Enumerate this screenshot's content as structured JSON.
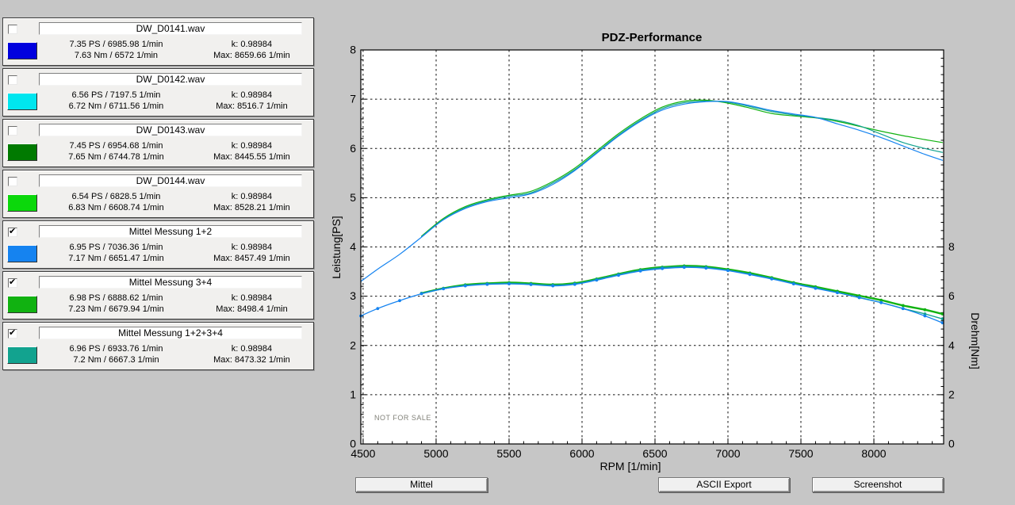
{
  "window": {
    "background": "#C6C6C6"
  },
  "panels": [
    {
      "name": "DW_D0141.wav",
      "checked": false,
      "color": "#0000DE",
      "ps_line": "7.35 PS / 6985.98 1/min",
      "k_line": "k: 0.98984",
      "nm_line": "7.63 Nm / 6572 1/min",
      "max_line": "Max: 8659.66 1/min"
    },
    {
      "name": "DW_D0142.wav",
      "checked": false,
      "color": "#00E6EF",
      "ps_line": "6.56 PS / 7197.5 1/min",
      "k_line": "k: 0.98984",
      "nm_line": "6.72 Nm / 6711.56 1/min",
      "max_line": "Max: 8516.7 1/min"
    },
    {
      "name": "DW_D0143.wav",
      "checked": false,
      "color": "#017A01",
      "ps_line": "7.45 PS / 6954.68 1/min",
      "k_line": "k: 0.98984",
      "nm_line": "7.65 Nm / 6744.78 1/min",
      "max_line": "Max: 8445.55 1/min"
    },
    {
      "name": "DW_D0144.wav",
      "checked": false,
      "color": "#0BD80B",
      "ps_line": "6.54 PS / 6828.5 1/min",
      "k_line": "k: 0.98984",
      "nm_line": "6.83 Nm / 6608.74 1/min",
      "max_line": "Max: 8528.21 1/min"
    },
    {
      "name": "Mittel Messung 1+2",
      "checked": true,
      "color": "#1583F0",
      "ps_line": "6.95 PS / 7036.36 1/min",
      "k_line": "k: 0.98984",
      "nm_line": "7.17 Nm / 6651.47 1/min",
      "max_line": "Max: 8457.49 1/min"
    },
    {
      "name": "Mittel Messung 3+4",
      "checked": true,
      "color": "#11B211",
      "ps_line": "6.98 PS / 6888.62 1/min",
      "k_line": "k: 0.98984",
      "nm_line": "7.23 Nm / 6679.94 1/min",
      "max_line": "Max: 8498.4 1/min"
    },
    {
      "name": "Mittel Messung 1+2+3+4",
      "checked": true,
      "color": "#12A38F",
      "ps_line": "6.96 PS / 6933.76 1/min",
      "k_line": "k: 0.98984",
      "nm_line": "7.2 Nm / 6667.3 1/min",
      "max_line": "Max: 8473.32 1/min"
    }
  ],
  "chart_data": {
    "type": "line",
    "title": "PDZ-Performance",
    "xlabel": "RPM [1/min]",
    "ylabel_left": "Leistung[PS]",
    "ylabel_right": "Drehm[Nm]",
    "watermark": "NOT FOR SALE",
    "grid": "dashed",
    "x_range": [
      4484,
      8478
    ],
    "x_ticks": [
      4500,
      5000,
      5500,
      6000,
      6500,
      7000,
      7500,
      8000
    ],
    "x_minor_step": 100,
    "y_left_range": [
      0,
      8
    ],
    "y_left_ticks": [
      0,
      1,
      2,
      3,
      4,
      5,
      6,
      7,
      8
    ],
    "y_left_minor_step": 0.2,
    "y_right_range": [
      0,
      16
    ],
    "y_right_ticks": [
      0,
      2,
      4,
      6,
      8
    ],
    "y_right_minor_step": 0.3333,
    "series": [
      {
        "name": "Mittel Messung 3+4 - Leistung",
        "axis": "left",
        "color": "#11B211",
        "width": 1.2,
        "markers": false,
        "x": [
          4900,
          5050,
          5200,
          5350,
          5500,
          5650,
          5800,
          5950,
          6100,
          6250,
          6400,
          6550,
          6700,
          6850,
          7000,
          7150,
          7300,
          7450,
          7600,
          7750,
          7900,
          8050,
          8200,
          8350,
          8470
        ],
        "y": [
          4.22,
          4.58,
          4.82,
          4.96,
          5.05,
          5.13,
          5.33,
          5.6,
          5.95,
          6.3,
          6.6,
          6.84,
          6.96,
          6.98,
          6.92,
          6.82,
          6.71,
          6.66,
          6.62,
          6.55,
          6.45,
          6.35,
          6.26,
          6.18,
          6.12
        ]
      },
      {
        "name": "Mittel Messung 1+2+3+4 - Leistung",
        "axis": "left",
        "color": "#12A38F",
        "width": 1.2,
        "markers": false,
        "x": [
          4900,
          5050,
          5200,
          5350,
          5500,
          5650,
          5800,
          5950,
          6100,
          6250,
          6400,
          6550,
          6700,
          6850,
          7000,
          7150,
          7300,
          7450,
          7600,
          7750,
          7900,
          8050,
          8200,
          8350,
          8470
        ],
        "y": [
          4.21,
          4.56,
          4.8,
          4.94,
          5.03,
          5.1,
          5.3,
          5.57,
          5.92,
          6.27,
          6.57,
          6.81,
          6.93,
          6.96,
          6.94,
          6.85,
          6.75,
          6.68,
          6.63,
          6.57,
          6.46,
          6.29,
          6.12,
          6.0,
          5.92
        ]
      },
      {
        "name": "Mittel Messung 1+2 - Leistung",
        "axis": "left",
        "color": "#1583F0",
        "width": 1.2,
        "markers": false,
        "x": [
          4484,
          4600,
          4750,
          4900,
          5050,
          5200,
          5350,
          5500,
          5650,
          5800,
          5950,
          6100,
          6250,
          6400,
          6550,
          6700,
          6850,
          7000,
          7150,
          7300,
          7450,
          7600,
          7750,
          7900,
          8050,
          8200,
          8350,
          8470
        ],
        "y": [
          3.3,
          3.55,
          3.85,
          4.2,
          4.55,
          4.78,
          4.92,
          5.0,
          5.08,
          5.27,
          5.55,
          5.9,
          6.25,
          6.55,
          6.78,
          6.9,
          6.95,
          6.95,
          6.87,
          6.77,
          6.7,
          6.63,
          6.5,
          6.37,
          6.22,
          6.05,
          5.88,
          5.76
        ]
      },
      {
        "name": "Mittel Messung 3+4 - Drehmoment",
        "axis": "right",
        "color": "#11B211",
        "width": 2.4,
        "markers": true,
        "x": [
          4900,
          5050,
          5200,
          5350,
          5500,
          5650,
          5800,
          5950,
          6100,
          6250,
          6400,
          6550,
          6700,
          6850,
          7000,
          7150,
          7300,
          7450,
          7600,
          7750,
          7900,
          8050,
          8200,
          8350,
          8470
        ],
        "y": [
          6.12,
          6.32,
          6.46,
          6.52,
          6.55,
          6.52,
          6.47,
          6.53,
          6.7,
          6.9,
          7.08,
          7.18,
          7.23,
          7.2,
          7.09,
          6.94,
          6.75,
          6.55,
          6.38,
          6.2,
          6.02,
          5.84,
          5.62,
          5.45,
          5.28
        ]
      },
      {
        "name": "Mittel Messung 1+2+3+4 - Drehmoment",
        "axis": "right",
        "color": "#12A38F",
        "width": 1.4,
        "markers": true,
        "x": [
          4900,
          5050,
          5200,
          5350,
          5500,
          5650,
          5800,
          5950,
          6100,
          6250,
          6400,
          6550,
          6700,
          6850,
          7000,
          7150,
          7300,
          7450,
          7600,
          7750,
          7900,
          8050,
          8200,
          8350,
          8470
        ],
        "y": [
          6.11,
          6.31,
          6.44,
          6.5,
          6.52,
          6.49,
          6.45,
          6.5,
          6.68,
          6.88,
          7.05,
          7.16,
          7.2,
          7.17,
          7.05,
          6.9,
          6.72,
          6.52,
          6.34,
          6.15,
          5.94,
          5.74,
          5.5,
          5.28,
          5.08
        ]
      },
      {
        "name": "Mittel Messung 1+2 - Drehmoment",
        "axis": "right",
        "color": "#1583F0",
        "width": 1.3,
        "markers": true,
        "x": [
          4484,
          4600,
          4750,
          4900,
          5050,
          5200,
          5350,
          5500,
          5650,
          5800,
          5950,
          6100,
          6250,
          6400,
          6550,
          6700,
          6850,
          7000,
          7150,
          7300,
          7450,
          7600,
          7750,
          7900,
          8050,
          8200,
          8350,
          8470
        ],
        "y": [
          5.2,
          5.5,
          5.82,
          6.1,
          6.3,
          6.42,
          6.48,
          6.5,
          6.47,
          6.42,
          6.48,
          6.65,
          6.85,
          7.02,
          7.12,
          7.17,
          7.14,
          7.04,
          6.88,
          6.7,
          6.5,
          6.32,
          6.14,
          5.95,
          5.74,
          5.5,
          5.2,
          4.92
        ]
      }
    ]
  },
  "buttons": {
    "mittel": "Mittel",
    "ascii_export": "ASCII Export",
    "screenshot": "Screenshot"
  }
}
